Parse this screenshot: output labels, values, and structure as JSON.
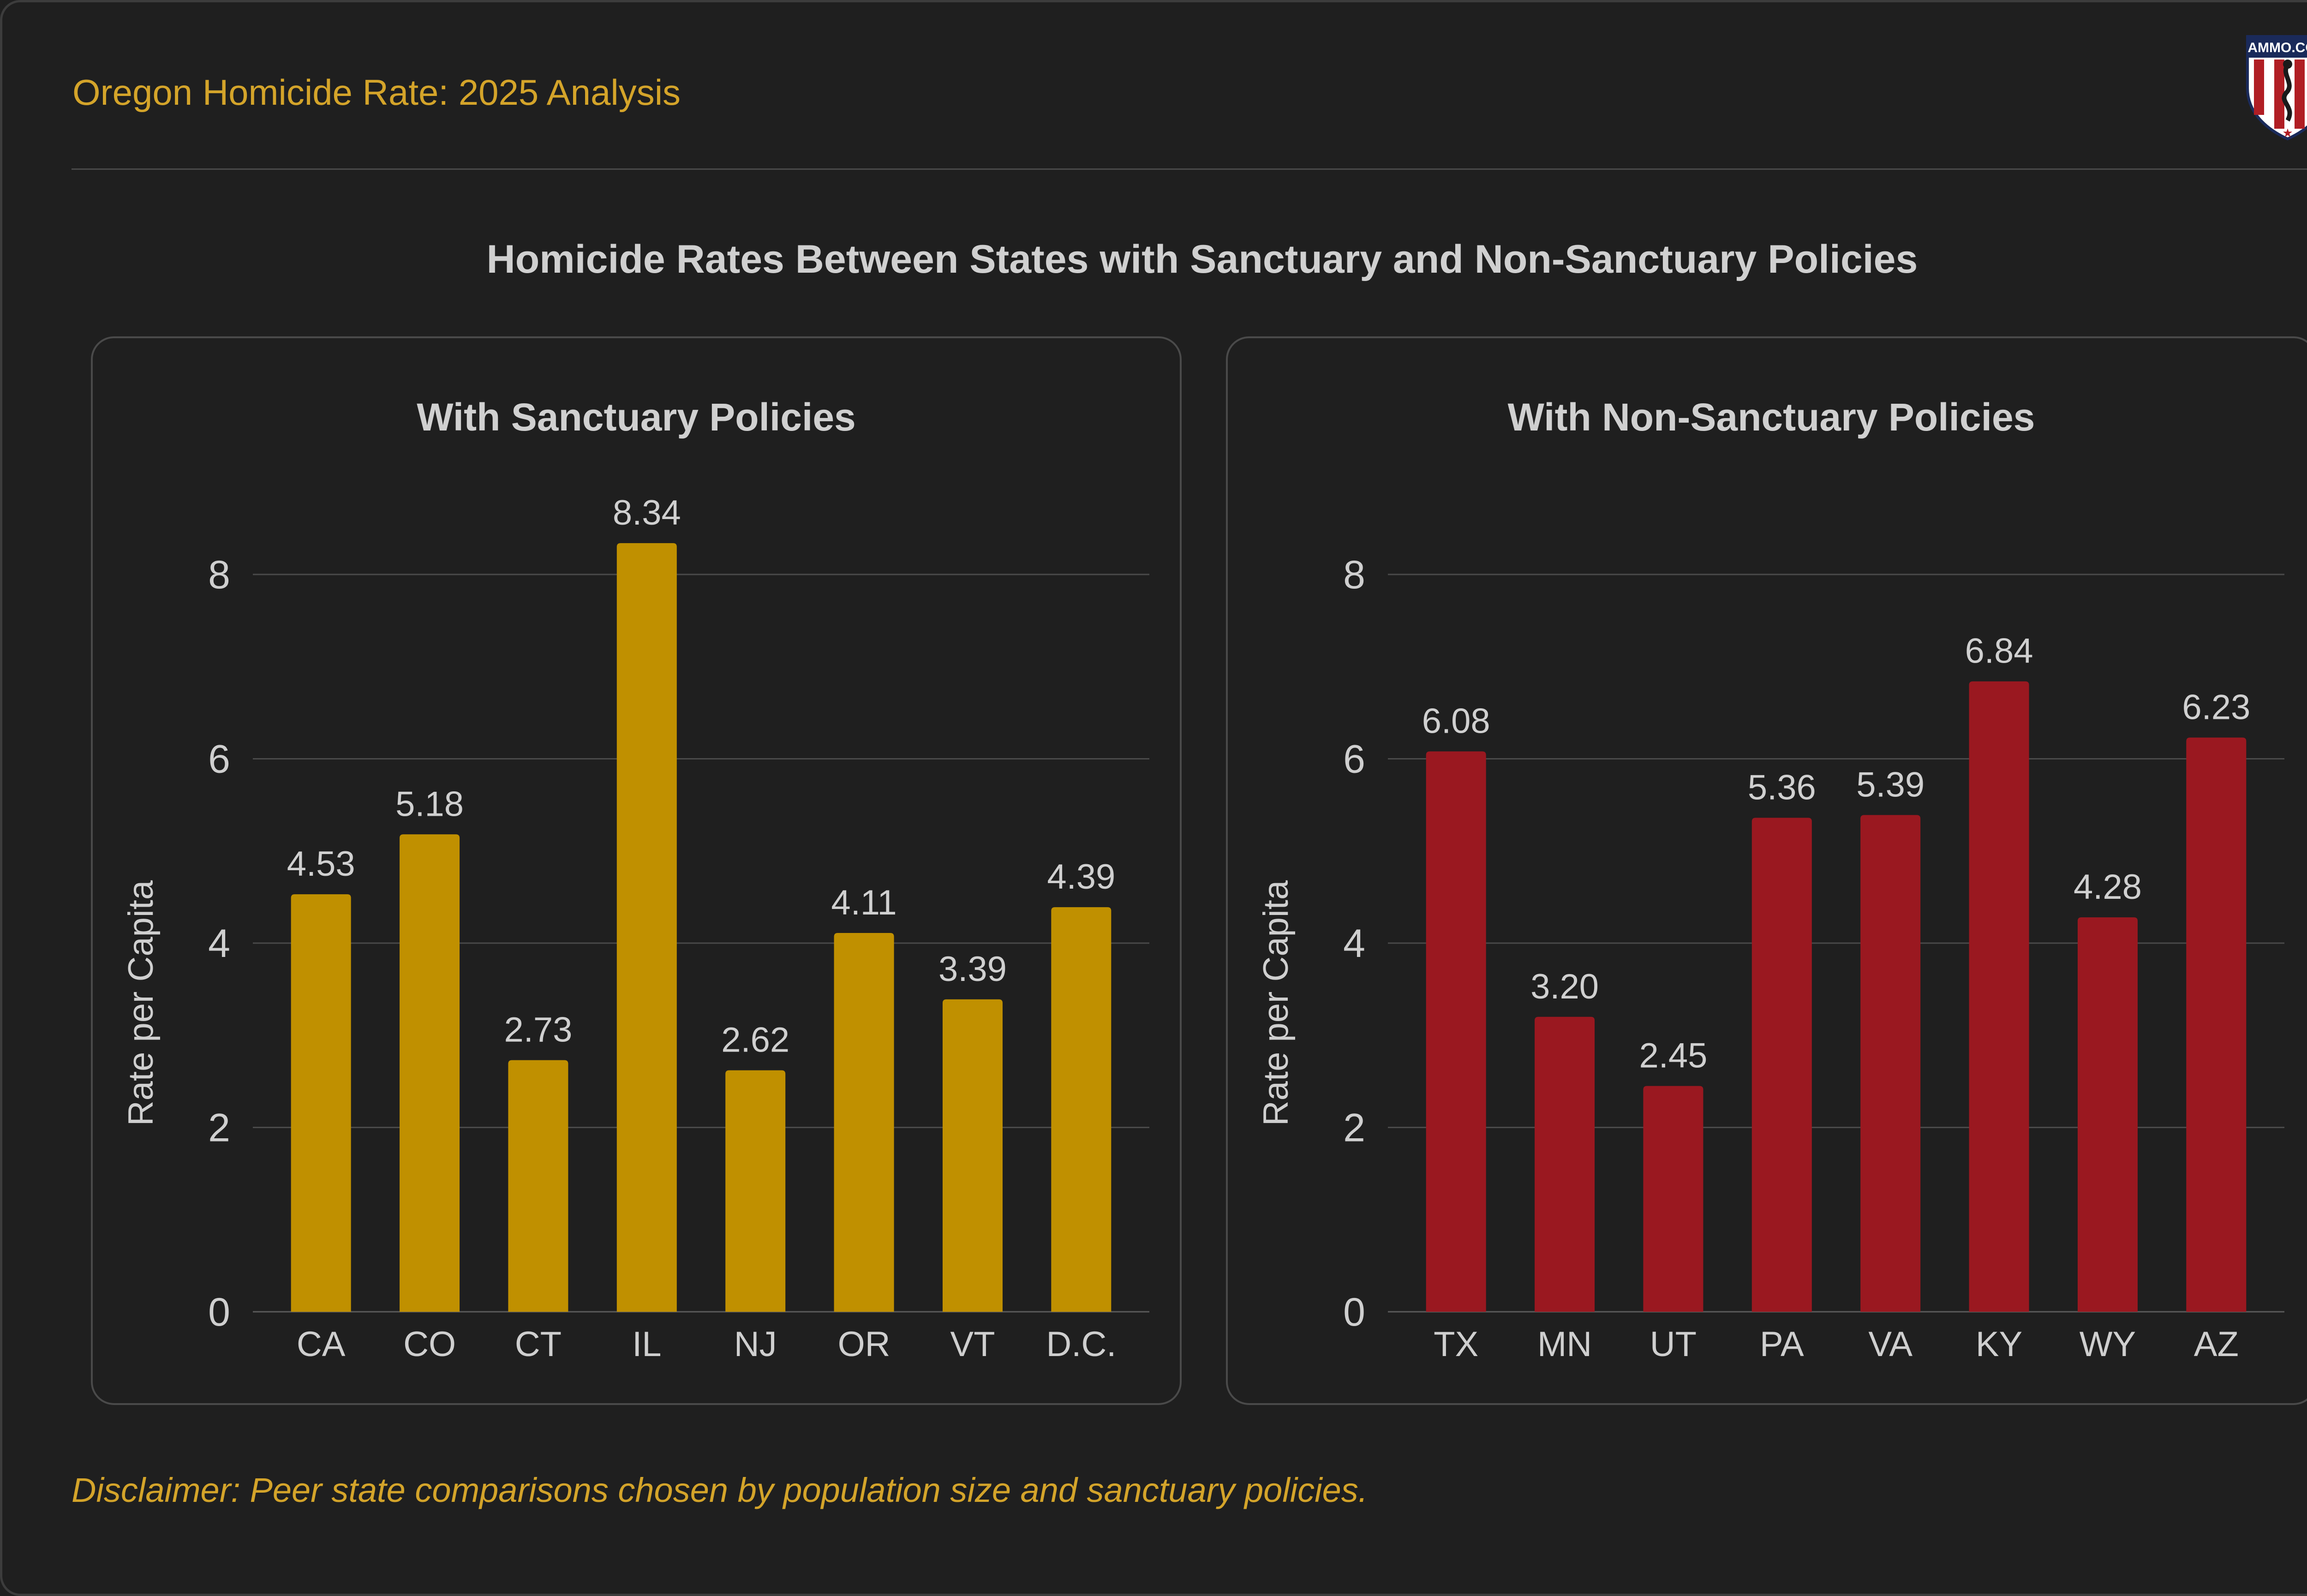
{
  "header": {
    "title": "Oregon Homicide Rate: 2025 Analysis",
    "logo_icon": "shield-logo-icon",
    "logo_text": "AMMO.COM"
  },
  "main_title": "Homicide Rates Between States with Sanctuary and Non-Sanctuary Policies",
  "colors": {
    "background": "#1f1f1f",
    "accent_gold": "#d4a42a",
    "sanctuary_bar": "#c09000",
    "non_sanctuary_bar": "#9a1820",
    "text_light": "#d0d0d0",
    "grid": "#4a4a4a"
  },
  "chart_data": [
    {
      "type": "bar",
      "title": "With Sanctuary Policies",
      "xlabel": "",
      "ylabel": "Rate per Capita",
      "categories": [
        "CA",
        "CO",
        "CT",
        "IL",
        "NJ",
        "OR",
        "VT",
        "D.C."
      ],
      "values": [
        4.53,
        5.18,
        2.73,
        8.34,
        2.62,
        4.11,
        3.39,
        4.39
      ],
      "value_labels": [
        "4.53",
        "5.18",
        "2.73",
        "8.34",
        "2.62",
        "4.11",
        "3.39",
        "4.39"
      ],
      "yticks": [
        0,
        2,
        4,
        6,
        8
      ],
      "ylim": [
        0,
        8.6
      ],
      "grid": true,
      "color": "#c09000"
    },
    {
      "type": "bar",
      "title": "With Non-Sanctuary Policies",
      "xlabel": "",
      "ylabel": "Rate per Capita",
      "categories": [
        "TX",
        "MN",
        "UT",
        "PA",
        "VA",
        "KY",
        "WY",
        "AZ"
      ],
      "values": [
        6.08,
        3.2,
        2.45,
        5.36,
        5.39,
        6.84,
        4.28,
        6.23
      ],
      "value_labels": [
        "6.08",
        "3.20",
        "2.45",
        "5.36",
        "5.39",
        "6.84",
        "4.28",
        "6.23"
      ],
      "yticks": [
        0,
        2,
        4,
        6,
        8
      ],
      "ylim": [
        0,
        8.6
      ],
      "grid": true,
      "color": "#9a1820"
    }
  ],
  "disclaimer": "Disclaimer: Peer state comparisons chosen by population size and sanctuary policies."
}
